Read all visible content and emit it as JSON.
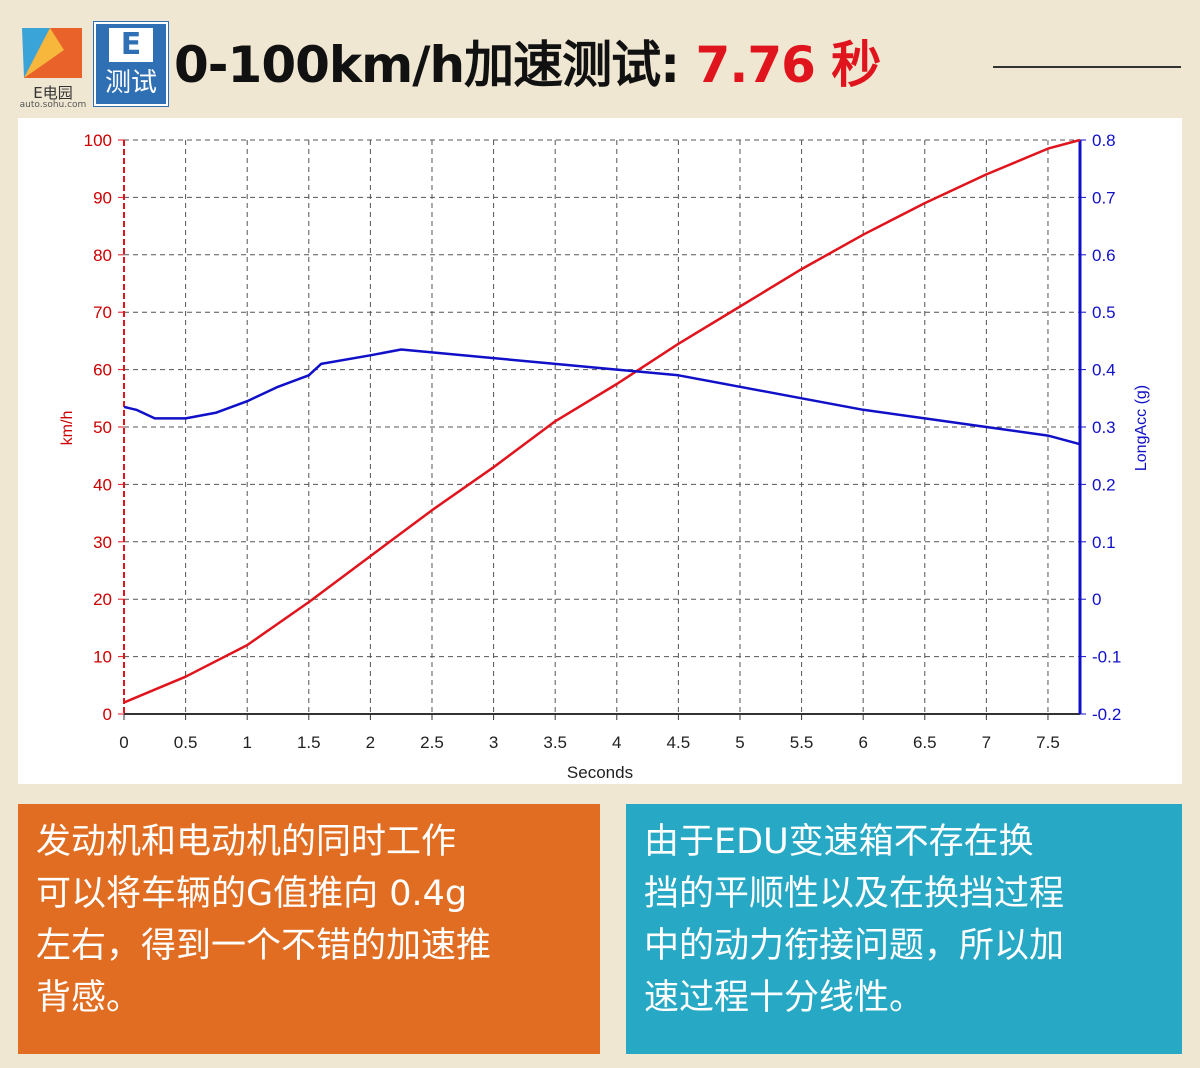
{
  "header": {
    "brand_name": "E电园",
    "brand_url": "auto.sohu.com",
    "badge_letter": "E",
    "badge_text": "测试",
    "title_prefix": "0-100km/h加速测试: ",
    "title_value": "7.76 秒"
  },
  "colors": {
    "background": "#f0e7d2",
    "speed_series": "#e0141c",
    "accel_series": "#1010c8",
    "left_box": "#e06d22",
    "right_box": "#27a8c4"
  },
  "chart_data": {
    "type": "line",
    "xlabel": "Seconds",
    "ylabel_left": "km/h",
    "ylabel_right": "LongAcc (g)",
    "xlim": [
      0,
      7.76
    ],
    "ylim_left": [
      0,
      100
    ],
    "ylim_right": [
      -0.2,
      0.8
    ],
    "x_ticks": [
      "0",
      "0.5",
      "1",
      "1.5",
      "2",
      "2.5",
      "3",
      "3.5",
      "4",
      "4.5",
      "5",
      "5.5",
      "6",
      "6.5",
      "7",
      "7.5"
    ],
    "y_left_ticks": [
      "0",
      "10",
      "20",
      "30",
      "40",
      "50",
      "60",
      "70",
      "80",
      "90",
      "100"
    ],
    "y_right_ticks": [
      "-0.2",
      "-0.1",
      "0",
      "0.1",
      "0.2",
      "0.3",
      "0.4",
      "0.5",
      "0.6",
      "0.7",
      "0.8"
    ],
    "grid": true,
    "series": [
      {
        "axis": "left",
        "x": [
          0,
          0.5,
          1,
          1.5,
          2,
          2.5,
          3,
          3.5,
          4,
          4.5,
          5,
          5.5,
          6,
          6.5,
          7,
          7.5,
          7.76
        ],
        "y": [
          2,
          6.5,
          12,
          19.5,
          27.5,
          35.5,
          43,
          51,
          57.5,
          64.5,
          71,
          77.5,
          83.5,
          89,
          94,
          98.5,
          100
        ]
      },
      {
        "axis": "right",
        "x": [
          0,
          0.1,
          0.25,
          0.5,
          0.75,
          1,
          1.25,
          1.5,
          1.6,
          2,
          2.25,
          2.5,
          3,
          3.5,
          4,
          4.5,
          5,
          5.5,
          6,
          6.5,
          7,
          7.5,
          7.76
        ],
        "y": [
          0.335,
          0.33,
          0.315,
          0.315,
          0.325,
          0.345,
          0.37,
          0.39,
          0.41,
          0.425,
          0.435,
          0.43,
          0.42,
          0.41,
          0.4,
          0.39,
          0.37,
          0.35,
          0.33,
          0.315,
          0.3,
          0.285,
          0.27
        ]
      }
    ]
  },
  "left_box": {
    "line1": "发动机和电动机的同时工作",
    "line2": "可以将车辆的G值推向 0.4g",
    "line3": "左右，得到一个不错的加速推",
    "line4": "背感。"
  },
  "right_box": {
    "line1": "由于EDU变速箱不存在换",
    "line2": "挡的平顺性以及在换挡过程",
    "line3": "中的动力衔接问题，所以加",
    "line4": "速过程十分线性。"
  }
}
